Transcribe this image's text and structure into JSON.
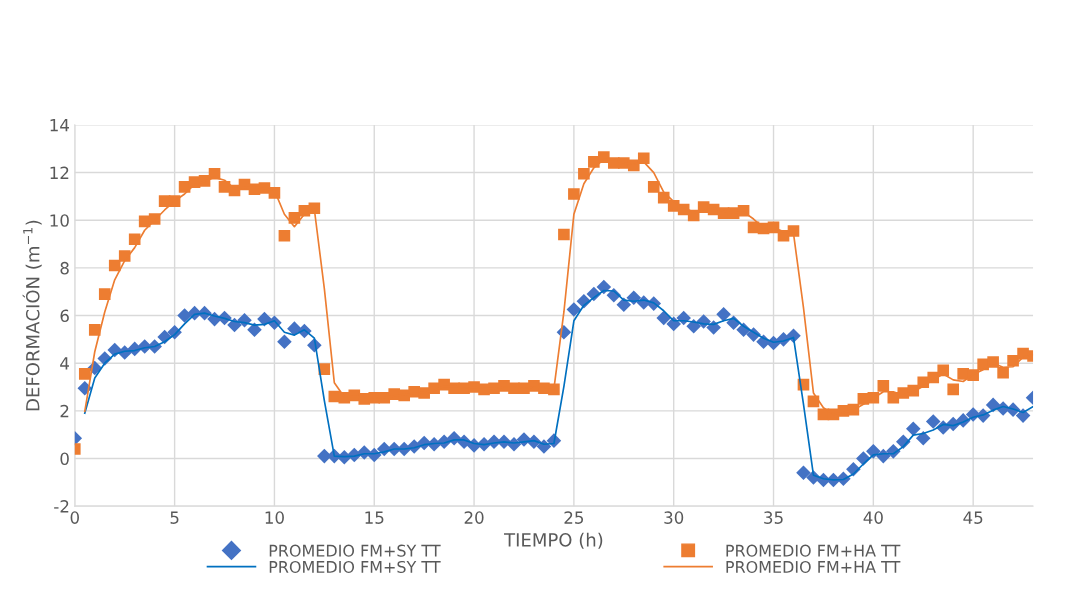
{
  "chart_data": {
    "type": "scatter",
    "xlabel": "TIEMPO (h)",
    "ylabel": "DEFORMACIÓN (m$^{−1}$)",
    "xlim": [
      0,
      48
    ],
    "xticks": [
      0,
      5,
      10,
      15,
      20,
      25,
      30,
      35,
      40,
      45
    ],
    "ylim": [
      -2,
      14
    ],
    "yticks": [
      -2,
      0,
      2,
      4,
      6,
      8,
      10,
      12,
      14
    ],
    "grid": true,
    "legend": "bottom",
    "x": [
      0,
      0.5,
      1,
      1.5,
      2,
      2.5,
      3,
      3.5,
      4,
      4.5,
      5,
      5.5,
      6,
      6.5,
      7,
      7.5,
      8,
      8.5,
      9,
      9.5,
      10,
      10.5,
      11,
      11.5,
      12,
      12.5,
      13,
      13.5,
      14,
      14.5,
      15,
      15.5,
      16,
      16.5,
      17,
      17.5,
      18,
      18.5,
      19,
      19.5,
      20,
      20.5,
      21,
      21.5,
      22,
      22.5,
      23,
      23.5,
      24,
      24.5,
      25,
      25.5,
      26,
      26.5,
      27,
      27.5,
      28,
      28.5,
      29,
      29.5,
      30,
      30.5,
      31,
      31.5,
      32,
      32.5,
      33,
      33.5,
      34,
      34.5,
      35,
      35.5,
      36,
      36.5,
      37,
      37.5,
      38,
      38.5,
      39,
      39.5,
      40,
      40.5,
      41,
      41.5,
      42,
      42.5,
      43,
      43.5,
      44,
      44.5,
      45,
      45.5,
      46,
      46.5,
      47,
      47.5,
      48
    ],
    "series": [
      {
        "name": "PROMEDIO FM+SY TT",
        "marker": "diamond",
        "color": "#4472c4",
        "values": [
          0.85,
          2.95,
          3.8,
          4.2,
          4.55,
          4.45,
          4.6,
          4.7,
          4.7,
          5.1,
          5.3,
          6.0,
          6.1,
          6.1,
          5.85,
          5.9,
          5.6,
          5.8,
          5.4,
          5.85,
          5.7,
          4.9,
          5.45,
          5.35,
          4.75,
          0.1,
          0.1,
          0.05,
          0.15,
          0.25,
          0.15,
          0.4,
          0.4,
          0.4,
          0.5,
          0.65,
          0.6,
          0.7,
          0.85,
          0.7,
          0.55,
          0.6,
          0.7,
          0.7,
          0.6,
          0.8,
          0.7,
          0.5,
          0.75,
          5.3,
          6.25,
          6.6,
          6.9,
          7.2,
          6.85,
          6.45,
          6.75,
          6.55,
          6.5,
          5.9,
          5.65,
          5.9,
          5.55,
          5.75,
          5.5,
          6.05,
          5.7,
          5.4,
          5.2,
          4.9,
          4.85,
          5.0,
          5.15,
          -0.6,
          -0.8,
          -0.9,
          -0.9,
          -0.85,
          -0.45,
          0.0,
          0.3,
          0.1,
          0.3,
          0.7,
          1.25,
          0.85,
          1.55,
          1.3,
          1.45,
          1.6,
          1.85,
          1.8,
          2.25,
          2.1,
          2.05,
          1.8,
          2.55
        ]
      },
      {
        "name": "PROMEDIO FM+SY TT",
        "type": "line",
        "marker": "none",
        "line_style": "solid",
        "color": "#0070c0",
        "x": [
          0.5,
          1,
          1.5,
          2,
          2.5,
          3,
          3.5,
          4,
          4.5,
          5,
          5.5,
          6,
          6.5,
          7,
          7.5,
          8,
          8.5,
          9,
          9.5,
          10,
          10.5,
          11,
          11.5,
          12,
          12.5,
          13,
          13.5,
          14,
          14.5,
          15,
          15.5,
          16,
          16.5,
          17,
          17.5,
          18,
          18.5,
          19,
          19.5,
          20,
          20.5,
          21,
          21.5,
          22,
          22.5,
          23,
          23.5,
          24,
          24.5,
          25,
          25.5,
          26,
          26.5,
          27,
          27.5,
          28,
          28.5,
          29,
          29.5,
          30,
          30.5,
          31,
          31.5,
          32,
          32.5,
          33,
          33.5,
          34,
          34.5,
          35,
          35.5,
          36,
          36.5,
          37,
          37.5,
          38,
          38.5,
          39,
          39.5,
          40,
          40.5,
          41,
          41.5,
          42,
          42.5,
          43,
          43.5,
          44,
          44.5,
          45,
          45.5,
          46,
          46.5,
          47,
          47.5,
          48
        ],
        "values": [
          1.9,
          3.38,
          4.0,
          4.38,
          4.5,
          4.53,
          4.65,
          4.7,
          4.9,
          5.2,
          5.65,
          6.05,
          6.1,
          5.98,
          5.88,
          5.75,
          5.7,
          5.6,
          5.63,
          5.78,
          5.3,
          5.18,
          5.4,
          5.05,
          2.43,
          0.1,
          0.08,
          0.1,
          0.2,
          0.2,
          0.28,
          0.4,
          0.4,
          0.45,
          0.58,
          0.63,
          0.65,
          0.78,
          0.78,
          0.63,
          0.58,
          0.65,
          0.7,
          0.65,
          0.7,
          0.75,
          0.6,
          0.63,
          3.03,
          5.78,
          6.43,
          6.75,
          7.05,
          7.03,
          6.65,
          6.6,
          6.65,
          6.53,
          6.2,
          5.78,
          5.78,
          5.73,
          5.65,
          5.63,
          5.78,
          5.88,
          5.55,
          5.3,
          5.05,
          4.88,
          4.93,
          5.08,
          2.28,
          -0.7,
          -0.85,
          -0.9,
          -0.88,
          -0.65,
          -0.23,
          0.15,
          0.2,
          0.2,
          0.5,
          0.98,
          1.05,
          1.2,
          1.43,
          1.38,
          1.53,
          1.73,
          1.83,
          2.03,
          2.18,
          2.08,
          1.93,
          2.18
        ]
      },
      {
        "name": "PROMEDIO FM+HA TT",
        "marker": "square",
        "color": "#ed7d31",
        "values": [
          0.4,
          3.55,
          5.4,
          6.9,
          8.1,
          8.5,
          9.2,
          9.95,
          10.05,
          10.8,
          10.8,
          11.4,
          11.6,
          11.65,
          11.95,
          11.4,
          11.25,
          11.5,
          11.3,
          11.35,
          11.15,
          9.35,
          10.1,
          10.4,
          10.5,
          3.75,
          2.6,
          2.55,
          2.65,
          2.5,
          2.55,
          2.55,
          2.7,
          2.65,
          2.8,
          2.75,
          2.95,
          3.1,
          2.95,
          2.95,
          3.0,
          2.9,
          2.95,
          3.05,
          2.95,
          2.95,
          3.05,
          2.95,
          2.9,
          9.4,
          11.1,
          11.95,
          12.45,
          12.65,
          12.4,
          12.4,
          12.3,
          12.6,
          11.4,
          10.95,
          10.6,
          10.45,
          10.2,
          10.55,
          10.45,
          10.3,
          10.3,
          10.4,
          9.7,
          9.65,
          9.7,
          9.35,
          9.55,
          3.1,
          2.4,
          1.85,
          1.85,
          2.0,
          2.05,
          2.5,
          2.55,
          3.05,
          2.55,
          2.75,
          2.85,
          3.2,
          3.4,
          3.7,
          2.9,
          3.55,
          3.5,
          3.95,
          4.05,
          3.6,
          4.1,
          4.4,
          4.3
        ]
      },
      {
        "name": "PROMEDIO FM+HA TT",
        "type": "line",
        "marker": "none",
        "line_style": "solid",
        "color": "#ed7d31",
        "x": [
          0.5,
          1,
          1.5,
          2,
          2.5,
          3,
          3.5,
          4,
          4.5,
          5,
          5.5,
          6,
          6.5,
          7,
          7.5,
          8,
          8.5,
          9,
          9.5,
          10,
          10.5,
          11,
          11.5,
          12,
          12.5,
          13,
          13.5,
          14,
          14.5,
          15,
          15.5,
          16,
          16.5,
          17,
          17.5,
          18,
          18.5,
          19,
          19.5,
          20,
          20.5,
          21,
          21.5,
          22,
          22.5,
          23,
          23.5,
          24,
          24.5,
          25,
          25.5,
          26,
          26.5,
          27,
          27.5,
          28,
          28.5,
          29,
          29.5,
          30,
          30.5,
          31,
          31.5,
          32,
          32.5,
          33,
          33.5,
          34,
          34.5,
          35,
          35.5,
          36,
          36.5,
          37,
          37.5,
          38,
          38.5,
          39,
          39.5,
          40,
          40.5,
          41,
          41.5,
          42,
          42.5,
          43,
          43.5,
          44,
          44.5,
          45,
          45.5,
          46,
          46.5,
          47,
          47.5,
          48
        ],
        "values": [
          1.98,
          4.48,
          6.15,
          7.5,
          8.3,
          8.85,
          9.58,
          10.0,
          10.43,
          10.8,
          11.1,
          11.5,
          11.63,
          11.8,
          11.68,
          11.33,
          11.38,
          11.4,
          11.33,
          11.25,
          10.25,
          9.73,
          10.25,
          10.45,
          7.13,
          3.18,
          2.58,
          2.6,
          2.58,
          2.53,
          2.55,
          2.63,
          2.68,
          2.73,
          2.78,
          2.85,
          3.03,
          3.03,
          2.95,
          2.98,
          2.95,
          2.93,
          3.0,
          3.0,
          2.95,
          3.0,
          3.0,
          2.93,
          6.15,
          10.25,
          11.53,
          12.2,
          12.55,
          12.53,
          12.4,
          12.35,
          12.45,
          12.0,
          11.18,
          10.78,
          10.53,
          10.33,
          10.38,
          10.5,
          10.38,
          10.3,
          10.35,
          10.05,
          9.68,
          9.68,
          9.53,
          9.45,
          6.33,
          2.75,
          2.13,
          1.85,
          1.93,
          2.03,
          2.28,
          2.53,
          2.8,
          2.8,
          2.65,
          2.8,
          3.03,
          3.3,
          3.55,
          3.3,
          3.23,
          3.53,
          3.73,
          4.0,
          3.83,
          3.85,
          4.25,
          4.35
        ]
      }
    ]
  }
}
